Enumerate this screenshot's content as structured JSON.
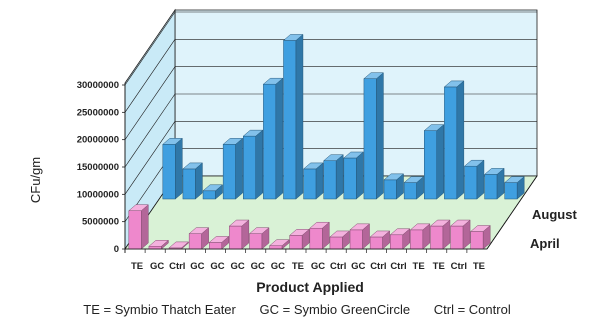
{
  "chart_data": {
    "type": "bar",
    "subtype": "3d-clustered-column",
    "xlabel": "Product Applied",
    "ylabel": "CFu/gm",
    "ylim": [
      0,
      30000000
    ],
    "ytick_labels": [
      "30000000",
      "25000000",
      "20000000",
      "15000000",
      "10000000",
      "5000000",
      "0"
    ],
    "yticks": [
      30000000,
      25000000,
      20000000,
      15000000,
      10000000,
      5000000,
      0
    ],
    "categories": [
      "TE",
      "GC",
      "Ctrl",
      "GC",
      "GC",
      "GC",
      "GC",
      "GC",
      "TE",
      "GC",
      "Ctrl",
      "GC",
      "Ctrl",
      "Ctrl",
      "TE",
      "TE",
      "Ctrl",
      "TE"
    ],
    "series": [
      {
        "name": "April",
        "color": "#ee88cc",
        "values": [
          7000000,
          500000,
          200000,
          2800000,
          1200000,
          4200000,
          2800000,
          600000,
          2500000,
          3800000,
          2200000,
          3500000,
          2200000,
          2600000,
          3500000,
          4200000,
          4200000,
          3200000
        ]
      },
      {
        "name": "August",
        "color": "#3f9fe0",
        "values": [
          10000000,
          5500000,
          1500000,
          10000000,
          11500000,
          21000000,
          29000000,
          5500000,
          7000000,
          7500000,
          22000000,
          3500000,
          3000000,
          12500000,
          20500000,
          6000000,
          4500000,
          3000000
        ]
      }
    ],
    "legend_position": "right",
    "grid": true
  },
  "footnote": {
    "te": "TE = Symbio Thatch Eater",
    "gc": "GC = Symbio GreenCircle",
    "ctrl": "Ctrl = Control"
  }
}
